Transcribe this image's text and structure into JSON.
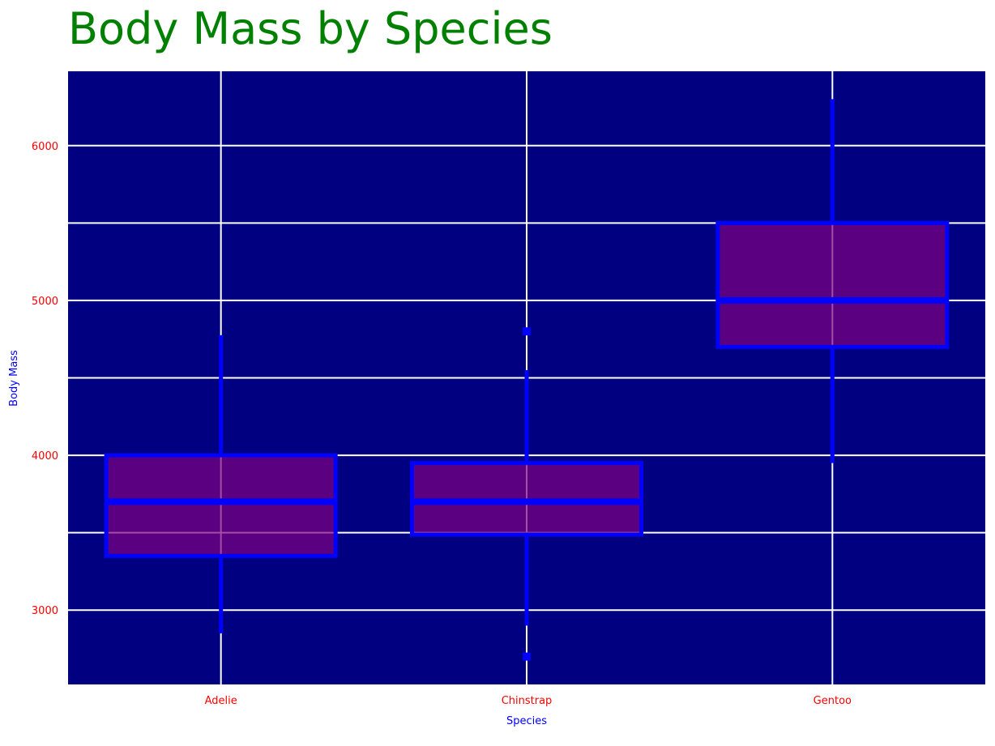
{
  "chart_data": {
    "type": "box",
    "title": "Body Mass by Species",
    "xlabel": "Species",
    "ylabel": "Body Mass",
    "categories": [
      "Adelie",
      "Chinstrap",
      "Gentoo"
    ],
    "boxes": [
      {
        "name": "Adelie",
        "whisker_low": 2850,
        "q1": 3350,
        "median": 3700,
        "q3": 4000,
        "whisker_high": 4775,
        "outliers": []
      },
      {
        "name": "Chinstrap",
        "whisker_low": 2900,
        "q1": 3487.5,
        "median": 3700,
        "q3": 3950,
        "whisker_high": 4550,
        "outliers": [
          2700,
          4800
        ]
      },
      {
        "name": "Gentoo",
        "whisker_low": 3950,
        "q1": 4700,
        "median": 5000,
        "q3": 5500,
        "whisker_high": 6300,
        "outliers": []
      }
    ],
    "ylim": [
      2520,
      6480
    ],
    "yticks": [
      3000,
      4000,
      5000,
      6000
    ],
    "ygrid": [
      3000,
      3500,
      4000,
      4500,
      5000,
      5500,
      6000
    ],
    "grid": true,
    "colors": {
      "title": "#008000",
      "plot_background": "#000080",
      "grid": "#ffffff",
      "box_fill": "#800080",
      "box_edge": "#0000ff",
      "tick_labels": "#ff0000",
      "axis_labels": "#0000ff"
    }
  }
}
